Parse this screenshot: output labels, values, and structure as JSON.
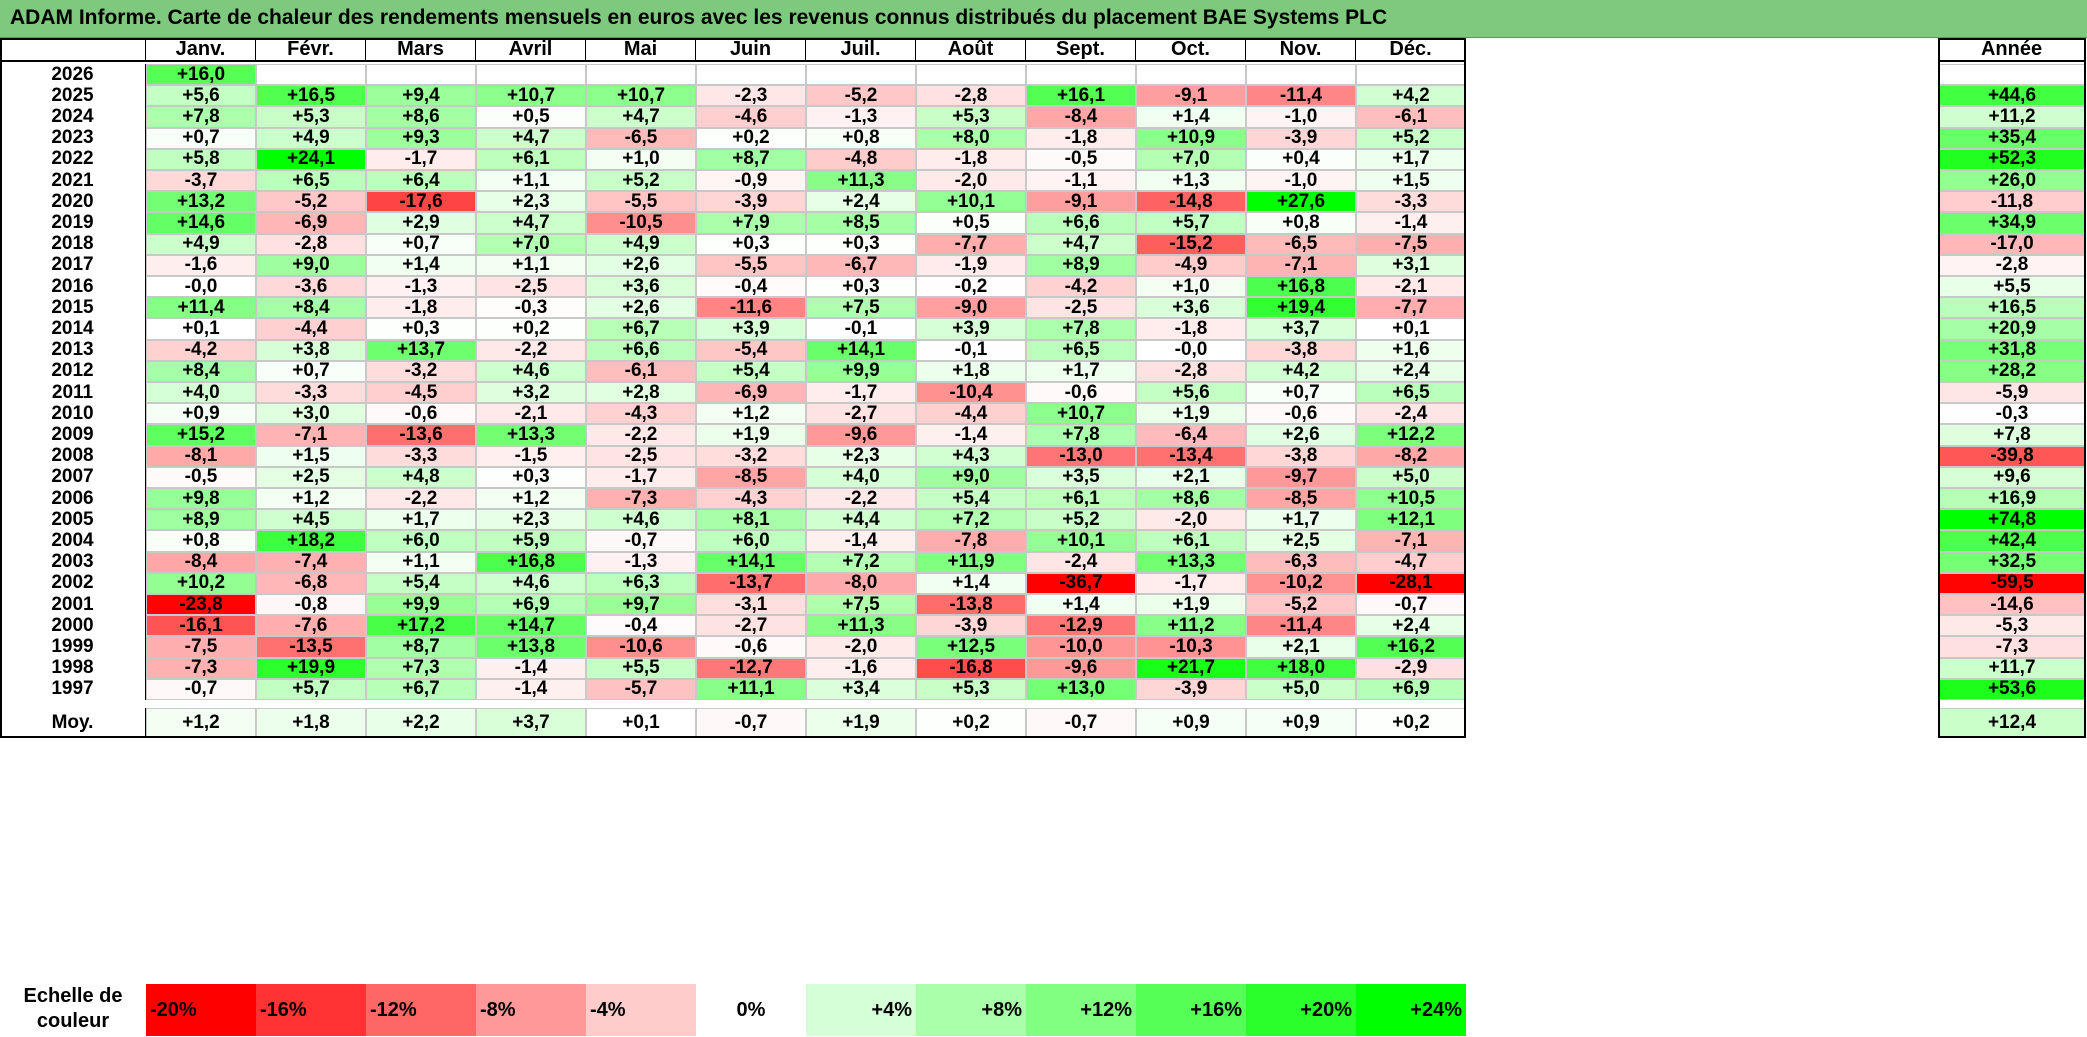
{
  "title": "ADAM Informe. Carte de chaleur des rendements mensuels en euros avec les revenus connus distribués du placement BAE Systems PLC",
  "months": [
    "Janv.",
    "Févr.",
    "Mars",
    "Avril",
    "Mai",
    "Juin",
    "Juil.",
    "Août",
    "Sept.",
    "Oct.",
    "Nov.",
    "Déc."
  ],
  "year_header": "Année",
  "average_label": "Moy.",
  "scale_label": "Echelle de couleur",
  "scale_steps": [
    "-20%",
    "-16%",
    "-12%",
    "-8%",
    "-4%",
    "0%",
    "+4%",
    "+8%",
    "+12%",
    "+16%",
    "+20%",
    "+24%"
  ],
  "scale_values": [
    -20,
    -16,
    -12,
    -8,
    -4,
    0,
    4,
    8,
    12,
    16,
    20,
    24
  ],
  "colors": {
    "negative": "#ff0000",
    "positive": "#00ff00",
    "neutral": "#ffffff",
    "title_bg": "#7ec97e"
  },
  "chart_data": {
    "type": "heatmap",
    "x": [
      "Janv.",
      "Févr.",
      "Mars",
      "Avril",
      "Mai",
      "Juin",
      "Juil.",
      "Août",
      "Sept.",
      "Oct.",
      "Nov.",
      "Déc."
    ],
    "rows": [
      {
        "year": "2026",
        "values": [
          "+16,0",
          null,
          null,
          null,
          null,
          null,
          null,
          null,
          null,
          null,
          null,
          null
        ],
        "annual": ""
      },
      {
        "year": "2025",
        "values": [
          "+5,6",
          "+16,5",
          "+9,4",
          "+10,7",
          "+10,7",
          "-2,3",
          "-5,2",
          "-2,8",
          "+16,1",
          "-9,1",
          "-11,4",
          "+4,2"
        ],
        "annual": "+44,6"
      },
      {
        "year": "2024",
        "values": [
          "+7,8",
          "+5,3",
          "+8,6",
          "+0,5",
          "+4,7",
          "-4,6",
          "-1,3",
          "+5,3",
          "-8,4",
          "+1,4",
          "-1,0",
          "-6,1"
        ],
        "annual": "+11,2"
      },
      {
        "year": "2023",
        "values": [
          "+0,7",
          "+4,9",
          "+9,3",
          "+4,7",
          "-6,5",
          "+0,2",
          "+0,8",
          "+8,0",
          "-1,8",
          "+10,9",
          "-3,9",
          "+5,2"
        ],
        "annual": "+35,4"
      },
      {
        "year": "2022",
        "values": [
          "+5,8",
          "+24,1",
          "-1,7",
          "+6,1",
          "+1,0",
          "+8,7",
          "-4,8",
          "-1,8",
          "-0,5",
          "+7,0",
          "+0,4",
          "+1,7"
        ],
        "annual": "+52,3"
      },
      {
        "year": "2021",
        "values": [
          "-3,7",
          "+6,5",
          "+6,4",
          "+1,1",
          "+5,2",
          "-0,9",
          "+11,3",
          "-2,0",
          "-1,1",
          "+1,3",
          "-1,0",
          "+1,5"
        ],
        "annual": "+26,0"
      },
      {
        "year": "2020",
        "values": [
          "+13,2",
          "-5,2",
          "-17,6",
          "+2,3",
          "-5,5",
          "-3,9",
          "+2,4",
          "+10,1",
          "-9,1",
          "-14,8",
          "+27,6",
          "-3,3"
        ],
        "annual": "-11,8"
      },
      {
        "year": "2019",
        "values": [
          "+14,6",
          "-6,9",
          "+2,9",
          "+4,7",
          "-10,5",
          "+7,9",
          "+8,5",
          "+0,5",
          "+6,6",
          "+5,7",
          "+0,8",
          "-1,4"
        ],
        "annual": "+34,9"
      },
      {
        "year": "2018",
        "values": [
          "+4,9",
          "-2,8",
          "+0,7",
          "+7,0",
          "+4,9",
          "+0,3",
          "+0,3",
          "-7,7",
          "+4,7",
          "-15,2",
          "-6,5",
          "-7,5"
        ],
        "annual": "-17,0"
      },
      {
        "year": "2017",
        "values": [
          "-1,6",
          "+9,0",
          "+1,4",
          "+1,1",
          "+2,6",
          "-5,5",
          "-6,7",
          "-1,9",
          "+8,9",
          "-4,9",
          "-7,1",
          "+3,1"
        ],
        "annual": "-2,8"
      },
      {
        "year": "2016",
        "values": [
          "-0,0",
          "-3,6",
          "-1,3",
          "-2,5",
          "+3,6",
          "-0,4",
          "+0,3",
          "-0,2",
          "-4,2",
          "+1,0",
          "+16,8",
          "-2,1"
        ],
        "annual": "+5,5"
      },
      {
        "year": "2015",
        "values": [
          "+11,4",
          "+8,4",
          "-1,8",
          "-0,3",
          "+2,6",
          "-11,6",
          "+7,5",
          "-9,0",
          "-2,5",
          "+3,6",
          "+19,4",
          "-7,7"
        ],
        "annual": "+16,5"
      },
      {
        "year": "2014",
        "values": [
          "+0,1",
          "-4,4",
          "+0,3",
          "+0,2",
          "+6,7",
          "+3,9",
          "-0,1",
          "+3,9",
          "+7,8",
          "-1,8",
          "+3,7",
          "+0,1"
        ],
        "annual": "+20,9"
      },
      {
        "year": "2013",
        "values": [
          "-4,2",
          "+3,8",
          "+13,7",
          "-2,2",
          "+6,6",
          "-5,4",
          "+14,1",
          "-0,1",
          "+6,5",
          "-0,0",
          "-3,8",
          "+1,6"
        ],
        "annual": "+31,8"
      },
      {
        "year": "2012",
        "values": [
          "+8,4",
          "+0,7",
          "-3,2",
          "+4,6",
          "-6,1",
          "+5,4",
          "+9,9",
          "+1,8",
          "+1,7",
          "-2,8",
          "+4,2",
          "+2,4"
        ],
        "annual": "+28,2"
      },
      {
        "year": "2011",
        "values": [
          "+4,0",
          "-3,3",
          "-4,5",
          "+3,2",
          "+2,8",
          "-6,9",
          "-1,7",
          "-10,4",
          "-0,6",
          "+5,6",
          "+0,7",
          "+6,5"
        ],
        "annual": "-5,9"
      },
      {
        "year": "2010",
        "values": [
          "+0,9",
          "+3,0",
          "-0,6",
          "-2,1",
          "-4,3",
          "+1,2",
          "-2,7",
          "-4,4",
          "+10,7",
          "+1,9",
          "-0,6",
          "-2,4"
        ],
        "annual": "-0,3"
      },
      {
        "year": "2009",
        "values": [
          "+15,2",
          "-7,1",
          "-13,6",
          "+13,3",
          "-2,2",
          "+1,9",
          "-9,6",
          "-1,4",
          "+7,8",
          "-6,4",
          "+2,6",
          "+12,2"
        ],
        "annual": "+7,8"
      },
      {
        "year": "2008",
        "values": [
          "-8,1",
          "+1,5",
          "-3,3",
          "-1,5",
          "-2,5",
          "-3,2",
          "+2,3",
          "+4,3",
          "-13,0",
          "-13,4",
          "-3,8",
          "-8,2"
        ],
        "annual": "-39,8"
      },
      {
        "year": "2007",
        "values": [
          "-0,5",
          "+2,5",
          "+4,8",
          "+0,3",
          "-1,7",
          "-8,5",
          "+4,0",
          "+9,0",
          "+3,5",
          "+2,1",
          "-9,7",
          "+5,0"
        ],
        "annual": "+9,6"
      },
      {
        "year": "2006",
        "values": [
          "+9,8",
          "+1,2",
          "-2,2",
          "+1,2",
          "-7,3",
          "-4,3",
          "-2,2",
          "+5,4",
          "+6,1",
          "+8,6",
          "-8,5",
          "+10,5"
        ],
        "annual": "+16,9"
      },
      {
        "year": "2005",
        "values": [
          "+8,9",
          "+4,5",
          "+1,7",
          "+2,3",
          "+4,6",
          "+8,1",
          "+4,4",
          "+7,2",
          "+5,2",
          "-2,0",
          "+1,7",
          "+12,1"
        ],
        "annual": "+74,8"
      },
      {
        "year": "2004",
        "values": [
          "+0,8",
          "+18,2",
          "+6,0",
          "+5,9",
          "-0,7",
          "+6,0",
          "-1,4",
          "-7,8",
          "+10,1",
          "+6,1",
          "+2,5",
          "-7,1"
        ],
        "annual": "+42,4"
      },
      {
        "year": "2003",
        "values": [
          "-8,4",
          "-7,4",
          "+1,1",
          "+16,8",
          "-1,3",
          "+14,1",
          "+7,2",
          "+11,9",
          "-2,4",
          "+13,3",
          "-6,3",
          "-4,7"
        ],
        "annual": "+32,5"
      },
      {
        "year": "2002",
        "values": [
          "+10,2",
          "-6,8",
          "+5,4",
          "+4,6",
          "+6,3",
          "-13,7",
          "-8,0",
          "+1,4",
          "-36,7",
          "-1,7",
          "-10,2",
          "-28,1"
        ],
        "annual": "-59,5"
      },
      {
        "year": "2001",
        "values": [
          "-23,8",
          "-0,8",
          "+9,9",
          "+6,9",
          "+9,7",
          "-3,1",
          "+7,5",
          "-13,8",
          "+1,4",
          "+1,9",
          "-5,2",
          "-0,7"
        ],
        "annual": "-14,6"
      },
      {
        "year": "2000",
        "values": [
          "-16,1",
          "-7,6",
          "+17,2",
          "+14,7",
          "-0,4",
          "-2,7",
          "+11,3",
          "-3,9",
          "-12,9",
          "+11,2",
          "-11,4",
          "+2,4"
        ],
        "annual": "-5,3"
      },
      {
        "year": "1999",
        "values": [
          "-7,5",
          "-13,5",
          "+8,7",
          "+13,8",
          "-10,6",
          "-0,6",
          "-2,0",
          "+12,5",
          "-10,0",
          "-10,3",
          "+2,1",
          "+16,2"
        ],
        "annual": "-7,3"
      },
      {
        "year": "1998",
        "values": [
          "-7,3",
          "+19,9",
          "+7,3",
          "-1,4",
          "+5,5",
          "-12,7",
          "-1,6",
          "-16,8",
          "-9,6",
          "+21,7",
          "+18,0",
          "-2,9"
        ],
        "annual": "+11,7"
      },
      {
        "year": "1997",
        "values": [
          "-0,7",
          "+5,7",
          "+6,7",
          "-1,4",
          "-5,7",
          "+11,1",
          "+3,4",
          "+5,3",
          "+13,0",
          "-3,9",
          "+5,0",
          "+6,9"
        ],
        "annual": "+53,6"
      }
    ],
    "averages": [
      "+1,2",
      "+1,8",
      "+2,2",
      "+3,7",
      "+0,1",
      "-0,7",
      "+1,9",
      "+0,2",
      "-0,7",
      "+0,9",
      "+0,9",
      "+0,2"
    ],
    "average_annual": "+12,4"
  }
}
